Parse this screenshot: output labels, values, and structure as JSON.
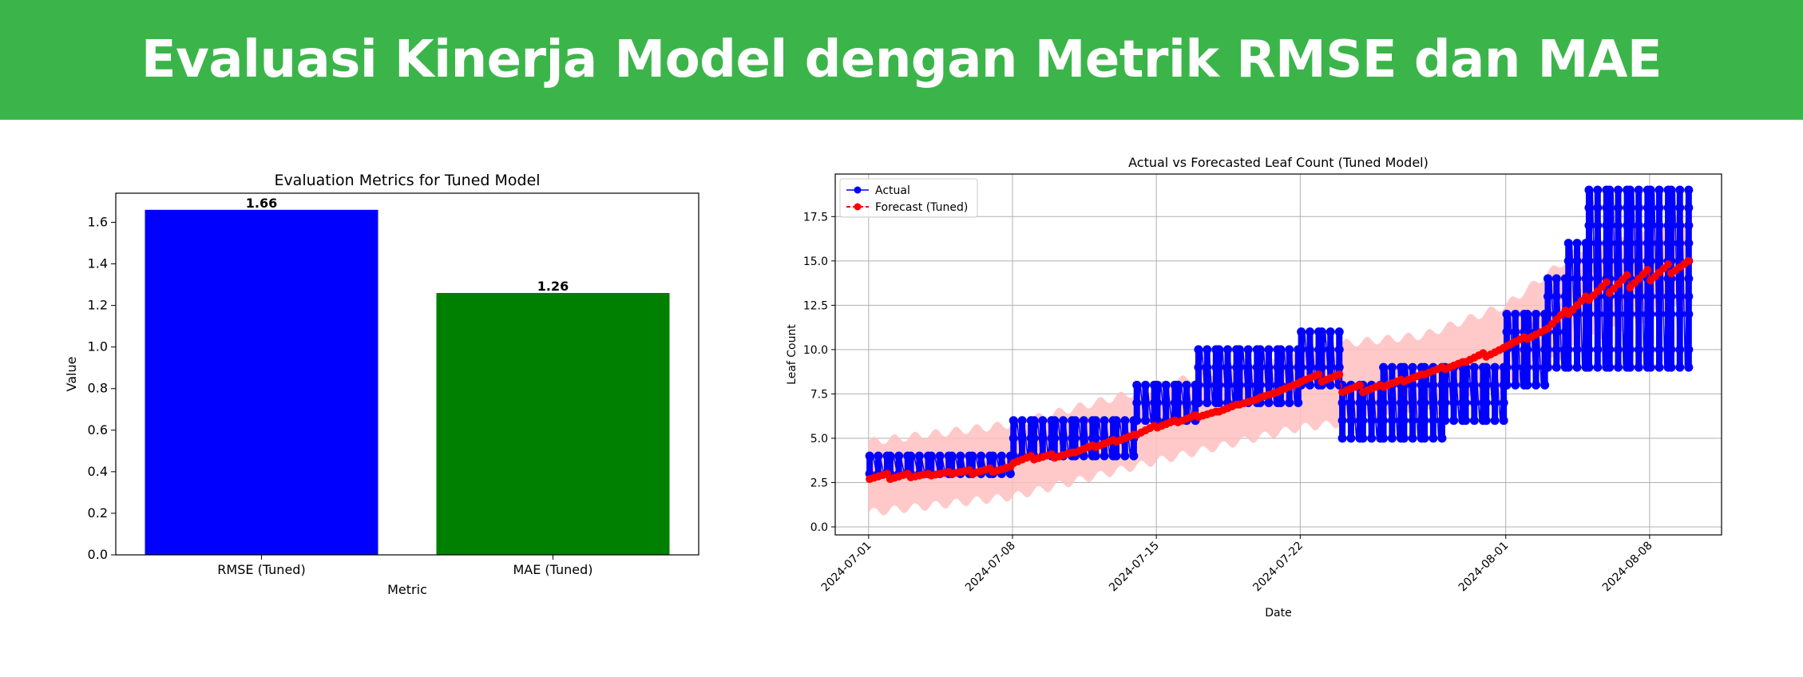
{
  "page": {
    "title": "Evaluasi Kinerja Model dengan Metrik RMSE dan MAE",
    "banner_color": "#3bb54a"
  },
  "chart_data": [
    {
      "type": "bar",
      "title": "Evaluation Metrics for Tuned Model",
      "xlabel": "Metric",
      "ylabel": "Value",
      "categories": [
        "RMSE (Tuned)",
        "MAE (Tuned)"
      ],
      "values": [
        1.66,
        1.26
      ],
      "value_labels": [
        "1.66",
        "1.26"
      ],
      "colors": [
        "#0000ff",
        "#008000"
      ],
      "ylim": [
        0,
        1.74
      ],
      "yticks": [
        "0.0",
        "0.2",
        "0.4",
        "0.6",
        "0.8",
        "1.0",
        "1.2",
        "1.4",
        "1.6"
      ],
      "grid": false
    },
    {
      "type": "line",
      "title": "Actual vs Forecasted Leaf Count (Tuned Model)",
      "xlabel": "Date",
      "ylabel": "Leaf Count",
      "xticks": [
        "2024-07-01",
        "2024-07-08",
        "2024-07-15",
        "2024-07-22",
        "2024-08-01",
        "2024-08-08"
      ],
      "yticks": [
        "0.0",
        "2.5",
        "5.0",
        "7.5",
        "10.0",
        "12.5",
        "15.0",
        "17.5"
      ],
      "xlim": [
        "2024-06-29 09:00",
        "2024-08-11 12:00"
      ],
      "ylim": [
        -0.45,
        19.9
      ],
      "grid": true,
      "legend": "upper-left",
      "series": [
        {
          "name": "Actual",
          "color": "#0000ff",
          "marker": "circle",
          "daily_values": [
            {
              "date": "2024-07-01",
              "values": [
                3,
                4
              ]
            },
            {
              "date": "2024-07-02",
              "values": [
                3,
                4
              ]
            },
            {
              "date": "2024-07-03",
              "values": [
                3,
                4
              ]
            },
            {
              "date": "2024-07-04",
              "values": [
                3,
                4
              ]
            },
            {
              "date": "2024-07-05",
              "values": [
                3,
                4
              ]
            },
            {
              "date": "2024-07-06",
              "values": [
                3,
                4
              ]
            },
            {
              "date": "2024-07-07",
              "values": [
                3,
                4
              ]
            },
            {
              "date": "2024-07-08",
              "values": [
                4,
                5,
                6
              ]
            },
            {
              "date": "2024-07-09",
              "values": [
                4,
                5,
                6
              ]
            },
            {
              "date": "2024-07-10",
              "values": [
                4,
                5,
                6
              ]
            },
            {
              "date": "2024-07-11",
              "values": [
                4,
                5,
                6
              ]
            },
            {
              "date": "2024-07-12",
              "values": [
                4,
                5,
                6
              ]
            },
            {
              "date": "2024-07-13",
              "values": [
                4,
                5,
                6
              ]
            },
            {
              "date": "2024-07-14",
              "values": [
                6,
                7,
                8
              ]
            },
            {
              "date": "2024-07-15",
              "values": [
                6,
                7,
                8
              ]
            },
            {
              "date": "2024-07-16",
              "values": [
                6,
                7,
                8
              ]
            },
            {
              "date": "2024-07-17",
              "values": [
                7,
                8,
                9,
                10
              ]
            },
            {
              "date": "2024-07-18",
              "values": [
                7,
                8,
                9,
                10
              ]
            },
            {
              "date": "2024-07-19",
              "values": [
                7,
                8,
                9,
                10
              ]
            },
            {
              "date": "2024-07-20",
              "values": [
                7,
                8,
                9,
                10
              ]
            },
            {
              "date": "2024-07-21",
              "values": [
                7,
                8,
                9,
                10
              ]
            },
            {
              "date": "2024-07-22",
              "values": [
                8,
                9,
                10,
                11
              ]
            },
            {
              "date": "2024-07-23",
              "values": [
                8,
                9,
                10,
                11
              ]
            },
            {
              "date": "2024-07-24",
              "values": [
                5,
                6,
                7,
                8
              ]
            },
            {
              "date": "2024-07-25",
              "values": [
                5,
                6,
                7,
                8
              ]
            },
            {
              "date": "2024-07-26",
              "values": [
                5,
                6,
                7,
                8,
                9
              ]
            },
            {
              "date": "2024-07-27",
              "values": [
                5,
                6,
                7,
                8,
                9
              ]
            },
            {
              "date": "2024-07-28",
              "values": [
                5,
                6,
                7,
                8,
                9
              ]
            },
            {
              "date": "2024-07-29",
              "values": [
                6,
                7,
                8,
                9
              ]
            },
            {
              "date": "2024-07-30",
              "values": [
                6,
                7,
                8,
                9
              ]
            },
            {
              "date": "2024-07-31",
              "values": [
                6,
                7,
                8,
                9
              ]
            },
            {
              "date": "2024-08-01",
              "values": [
                8,
                9,
                10,
                11,
                12
              ]
            },
            {
              "date": "2024-08-02",
              "values": [
                8,
                9,
                10,
                11,
                12
              ]
            },
            {
              "date": "2024-08-03",
              "values": [
                9,
                10,
                11,
                12,
                13,
                14
              ]
            },
            {
              "date": "2024-08-04",
              "values": [
                9,
                10,
                12,
                14,
                15,
                16
              ]
            },
            {
              "date": "2024-08-05",
              "values": [
                9,
                10,
                12,
                13,
                14,
                15,
                16,
                17,
                18,
                19
              ]
            },
            {
              "date": "2024-08-06",
              "values": [
                9,
                10,
                12,
                13,
                14,
                15,
                16,
                17,
                18,
                19
              ]
            },
            {
              "date": "2024-08-07",
              "values": [
                9,
                10,
                12,
                13,
                14,
                15,
                16,
                17,
                18,
                19
              ]
            },
            {
              "date": "2024-08-08",
              "values": [
                9,
                10,
                12,
                13,
                14,
                15,
                16,
                17,
                18,
                19
              ]
            },
            {
              "date": "2024-08-09",
              "values": [
                9,
                10,
                12,
                13,
                14,
                15,
                16,
                17,
                18,
                19
              ]
            }
          ]
        },
        {
          "name": "Forecast (Tuned)",
          "color": "#ff0000",
          "marker": "circle",
          "linestyle": "dashed",
          "daily_ranges": [
            {
              "date": "2024-07-01",
              "from": 2.7,
              "to": 3.0
            },
            {
              "date": "2024-07-02",
              "from": 2.7,
              "to": 3.0
            },
            {
              "date": "2024-07-03",
              "from": 2.8,
              "to": 3.0
            },
            {
              "date": "2024-07-04",
              "from": 2.9,
              "to": 3.1
            },
            {
              "date": "2024-07-05",
              "from": 3.0,
              "to": 3.2
            },
            {
              "date": "2024-07-06",
              "from": 3.0,
              "to": 3.3
            },
            {
              "date": "2024-07-07",
              "from": 3.1,
              "to": 3.4
            },
            {
              "date": "2024-07-08",
              "from": 3.6,
              "to": 4.0
            },
            {
              "date": "2024-07-09",
              "from": 3.8,
              "to": 4.1
            },
            {
              "date": "2024-07-10",
              "from": 3.9,
              "to": 4.2
            },
            {
              "date": "2024-07-11",
              "from": 4.2,
              "to": 4.6
            },
            {
              "date": "2024-07-12",
              "from": 4.5,
              "to": 4.9
            },
            {
              "date": "2024-07-13",
              "from": 4.8,
              "to": 5.2
            },
            {
              "date": "2024-07-14",
              "from": 5.2,
              "to": 5.7
            },
            {
              "date": "2024-07-15",
              "from": 5.6,
              "to": 6.0
            },
            {
              "date": "2024-07-16",
              "from": 5.9,
              "to": 6.3
            },
            {
              "date": "2024-07-17",
              "from": 6.2,
              "to": 6.5
            },
            {
              "date": "2024-07-18",
              "from": 6.5,
              "to": 6.9
            },
            {
              "date": "2024-07-19",
              "from": 6.9,
              "to": 7.2
            },
            {
              "date": "2024-07-20",
              "from": 7.3,
              "to": 7.6
            },
            {
              "date": "2024-07-21",
              "from": 7.7,
              "to": 8.1
            },
            {
              "date": "2024-07-22",
              "from": 8.2,
              "to": 8.6
            },
            {
              "date": "2024-07-23",
              "from": 8.2,
              "to": 8.6
            },
            {
              "date": "2024-07-24",
              "from": 7.6,
              "to": 8.0
            },
            {
              "date": "2024-07-25",
              "from": 7.6,
              "to": 8.0
            },
            {
              "date": "2024-07-26",
              "from": 7.9,
              "to": 8.3
            },
            {
              "date": "2024-07-27",
              "from": 8.2,
              "to": 8.6
            },
            {
              "date": "2024-07-28",
              "from": 8.6,
              "to": 9.0
            },
            {
              "date": "2024-07-29",
              "from": 8.9,
              "to": 9.3
            },
            {
              "date": "2024-07-30",
              "from": 9.3,
              "to": 9.8
            },
            {
              "date": "2024-07-31",
              "from": 9.6,
              "to": 10.1
            },
            {
              "date": "2024-08-01",
              "from": 10.2,
              "to": 10.7
            },
            {
              "date": "2024-08-02",
              "from": 10.6,
              "to": 11.1
            },
            {
              "date": "2024-08-03",
              "from": 11.2,
              "to": 12.2
            },
            {
              "date": "2024-08-04",
              "from": 12.0,
              "to": 13.0
            },
            {
              "date": "2024-08-05",
              "from": 12.8,
              "to": 13.8
            },
            {
              "date": "2024-08-06",
              "from": 13.2,
              "to": 14.2
            },
            {
              "date": "2024-08-07",
              "from": 13.5,
              "to": 14.5
            },
            {
              "date": "2024-08-08",
              "from": 13.9,
              "to": 14.8
            },
            {
              "date": "2024-08-09",
              "from": 14.3,
              "to": 15.0
            }
          ]
        },
        {
          "name": "",
          "type": "area",
          "color": "#ffc0c0",
          "daily_band": [
            {
              "date": "2024-07-01",
              "lower": 0.8,
              "upper": 4.8
            },
            {
              "date": "2024-07-08",
              "lower": 1.7,
              "upper": 5.8
            },
            {
              "date": "2024-07-15",
              "lower": 3.7,
              "upper": 7.9
            },
            {
              "date": "2024-07-22",
              "lower": 5.6,
              "upper": 10.1
            },
            {
              "date": "2024-07-28",
              "lower": 6.3,
              "upper": 10.8
            },
            {
              "date": "2024-08-01",
              "lower": 7.8,
              "upper": 12.5
            },
            {
              "date": "2024-08-05",
              "lower": 10.5,
              "upper": 16.0
            },
            {
              "date": "2024-08-09",
              "lower": 12.3,
              "upper": 17.3
            }
          ]
        }
      ]
    }
  ]
}
